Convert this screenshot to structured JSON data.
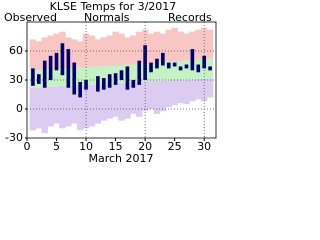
{
  "chart_data": {
    "type": "range",
    "title": "KLSE Temps for 3/2017",
    "x_label": "March 2017",
    "x": [
      1,
      2,
      3,
      4,
      5,
      6,
      7,
      8,
      9,
      10,
      11,
      12,
      13,
      14,
      15,
      16,
      17,
      18,
      19,
      20,
      21,
      22,
      23,
      24,
      25,
      26,
      27,
      28,
      29,
      30,
      31
    ],
    "xlim": [
      0,
      32
    ],
    "xticks": [
      0,
      5,
      10,
      15,
      20,
      25,
      30
    ],
    "ylim": [
      -30,
      90
    ],
    "yticks": [
      -30,
      0,
      30,
      60
    ],
    "grid": true,
    "series": [
      {
        "name": "Records",
        "color": "#c399f0",
        "band_colors": [
          "#f9c6c6",
          "#dcccf2"
        ],
        "high": [
          72,
          70,
          74,
          76,
          78,
          80,
          74,
          72,
          70,
          78,
          76,
          72,
          74,
          76,
          80,
          78,
          74,
          76,
          80,
          82,
          78,
          80,
          78,
          82,
          84,
          80,
          78,
          80,
          82,
          84,
          82
        ],
        "low": [
          -22,
          -20,
          -25,
          -18,
          -15,
          -20,
          -18,
          -15,
          -22,
          -20,
          -18,
          -15,
          -12,
          -10,
          -8,
          -12,
          -10,
          -5,
          -8,
          -2,
          0,
          -5,
          -2,
          2,
          4,
          6,
          5,
          8,
          10,
          8,
          12
        ]
      },
      {
        "name": "Normals",
        "color": "#009900",
        "band_color": "#c6f0c6",
        "high": [
          40,
          40,
          41,
          41,
          41,
          42,
          42,
          42,
          43,
          43,
          44,
          44,
          44,
          45,
          45,
          45,
          46,
          46,
          47,
          47,
          47,
          48,
          48,
          49,
          49,
          49,
          50,
          50,
          51,
          51,
          52
        ],
        "low": [
          22,
          22,
          23,
          23,
          23,
          24,
          24,
          24,
          25,
          25,
          25,
          26,
          26,
          26,
          27,
          27,
          27,
          28,
          28,
          28,
          29,
          29,
          29,
          29,
          30,
          30,
          30,
          30,
          31,
          31,
          31
        ]
      },
      {
        "name": "Observed",
        "color": "#000066",
        "high": [
          42,
          36,
          50,
          55,
          58,
          68,
          62,
          48,
          28,
          30,
          25,
          34,
          32,
          36,
          37,
          40,
          44,
          30,
          50,
          66,
          48,
          52,
          58,
          48,
          48,
          44,
          46,
          62,
          46,
          55,
          44
        ],
        "low": [
          24,
          26,
          22,
          30,
          40,
          35,
          22,
          15,
          12,
          20,
          25,
          18,
          20,
          22,
          25,
          30,
          20,
          22,
          25,
          30,
          38,
          42,
          45,
          42,
          44,
          40,
          42,
          40,
          38,
          42,
          40
        ]
      }
    ]
  }
}
